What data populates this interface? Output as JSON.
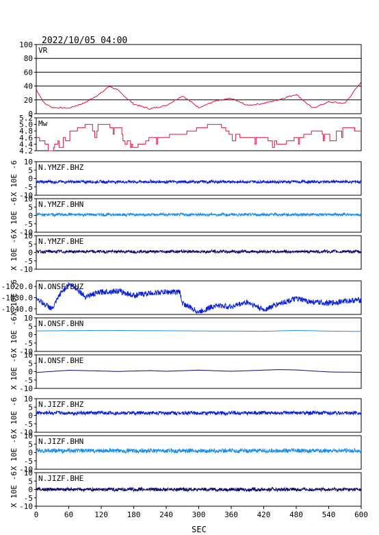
{
  "header": {
    "datetime": "2022/10/05 04:00"
  },
  "x_axis": {
    "label": "SEC",
    "range": [
      0,
      600
    ],
    "ticks": [
      0,
      60,
      120,
      180,
      240,
      300,
      360,
      420,
      480,
      540,
      600
    ]
  },
  "ylabel_shared": "X 10E -6",
  "colors": {
    "vr": "#e0103a",
    "mw": "#e0103a",
    "bhz": "#0b1fd6",
    "bhn": "#1a8fe8",
    "bhe": "#0a0a66",
    "axes": "#000000"
  },
  "chart_data": [
    {
      "type": "line",
      "title": "VR",
      "ylim": [
        0,
        100
      ],
      "yticks": [
        0,
        20,
        40,
        60,
        80,
        100
      ],
      "grid": "horizontal",
      "x": [
        0,
        15,
        30,
        60,
        90,
        120,
        135,
        150,
        180,
        210,
        240,
        270,
        300,
        330,
        360,
        390,
        420,
        450,
        480,
        510,
        540,
        570,
        600
      ],
      "values": [
        35,
        15,
        9,
        8,
        16,
        30,
        40,
        34,
        14,
        7,
        12,
        26,
        9,
        18,
        22,
        12,
        15,
        21,
        28,
        8,
        17,
        15,
        46
      ]
    },
    {
      "type": "line",
      "title": "Mw",
      "ylim": [
        4.2,
        5.2
      ],
      "yticks": [
        4.2,
        4.4,
        4.6,
        4.8,
        5.0,
        5.2
      ],
      "grid": "none",
      "x": [
        0,
        15,
        30,
        60,
        90,
        120,
        150,
        180,
        210,
        240,
        270,
        300,
        330,
        360,
        390,
        420,
        450,
        480,
        510,
        540,
        570,
        600
      ],
      "values": [
        4.6,
        4.4,
        4.3,
        4.8,
        5.0,
        5.0,
        4.9,
        4.3,
        4.6,
        4.7,
        4.7,
        4.9,
        5.0,
        4.7,
        4.6,
        4.6,
        4.4,
        4.6,
        4.8,
        4.7,
        4.9,
        4.8
      ]
    },
    {
      "type": "line",
      "title": "N.YMZF.BHZ",
      "ylabel": "X 10E -6",
      "ylim": [
        -10,
        10
      ],
      "yticks": [
        -10,
        -5,
        0,
        5,
        10
      ],
      "series_color": "bhz",
      "baseline": -2,
      "amplitude": 0.8
    },
    {
      "type": "line",
      "title": "N.YMZF.BHN",
      "ylabel": "X 10E -6",
      "ylim": [
        -10,
        10
      ],
      "yticks": [
        -10,
        -5,
        0,
        5,
        10
      ],
      "series_color": "bhn",
      "baseline": 0.5,
      "amplitude": 0.8
    },
    {
      "type": "line",
      "title": "N.YMZF.BHE",
      "ylabel": "X 10E -6",
      "ylim": [
        -10,
        10
      ],
      "yticks": [
        -10,
        -5,
        0,
        5,
        10
      ],
      "series_color": "bhe",
      "baseline": 0.5,
      "amplitude": 0.8
    },
    {
      "type": "line",
      "title": "N.ONSF.BHZ",
      "ylabel": "X 10E -6",
      "ylim": [
        -1045,
        -1015
      ],
      "yticks": [
        -1040,
        -1030,
        -1020
      ],
      "series_color": "bhz",
      "x": [
        0,
        15,
        30,
        45,
        60,
        75,
        90,
        120,
        150,
        180,
        210,
        240,
        255,
        265,
        270,
        285,
        300,
        330,
        360,
        390,
        420,
        450,
        480,
        510,
        540,
        570,
        600
      ],
      "values": [
        -1030,
        -1036,
        -1040,
        -1026,
        -1018,
        -1022,
        -1029,
        -1025,
        -1024,
        -1028,
        -1026,
        -1025,
        -1025,
        -1025,
        -1035,
        -1039,
        -1043,
        -1037,
        -1038,
        -1034,
        -1041,
        -1035,
        -1031,
        -1034,
        -1035,
        -1033,
        -1032
      ]
    },
    {
      "type": "line",
      "title": "N.ONSF.BHN",
      "ylabel": "X 10E -6",
      "ylim": [
        -10,
        10
      ],
      "yticks": [
        -10,
        -5,
        0,
        5,
        10
      ],
      "series_color": "bhn",
      "x": [
        0,
        120,
        240,
        300,
        420,
        480,
        540,
        600
      ],
      "values": [
        2.2,
        2.5,
        2.3,
        2.2,
        2.0,
        2.5,
        2.1,
        1.9
      ]
    },
    {
      "type": "line",
      "title": "N.ONSF.BHE",
      "ylabel": "X 10E -6",
      "ylim": [
        -10,
        10
      ],
      "yticks": [
        -10,
        -5,
        0,
        5,
        10
      ],
      "series_color": "bhe",
      "x": [
        0,
        60,
        90,
        150,
        210,
        240,
        300,
        360,
        420,
        450,
        480,
        540,
        600
      ],
      "values": [
        -0.5,
        0.8,
        0.6,
        0.1,
        0.6,
        0.2,
        0.9,
        0.2,
        0.9,
        1.2,
        1.0,
        -0.2,
        -0.4
      ]
    },
    {
      "type": "line",
      "title": "N.JIZF.BHZ",
      "ylabel": "X 10E -6",
      "ylim": [
        -10,
        10
      ],
      "yticks": [
        -10,
        -5,
        0,
        5,
        10
      ],
      "series_color": "bhz",
      "baseline": 1.5,
      "amplitude": 1.0
    },
    {
      "type": "line",
      "title": "N.JIZF.BHN",
      "ylabel": "X 10E -6",
      "ylim": [
        -10,
        10
      ],
      "yticks": [
        -10,
        -5,
        0,
        5,
        10
      ],
      "series_color": "bhn",
      "baseline": 1.0,
      "amplitude": 1.2
    },
    {
      "type": "line",
      "title": "N.JIZF.BHE",
      "ylabel": "X 10E -6",
      "ylim": [
        -10,
        10
      ],
      "yticks": [
        -10,
        -5,
        0,
        5,
        10
      ],
      "series_color": "bhe",
      "baseline": 0.0,
      "amplitude": 1.0
    }
  ]
}
